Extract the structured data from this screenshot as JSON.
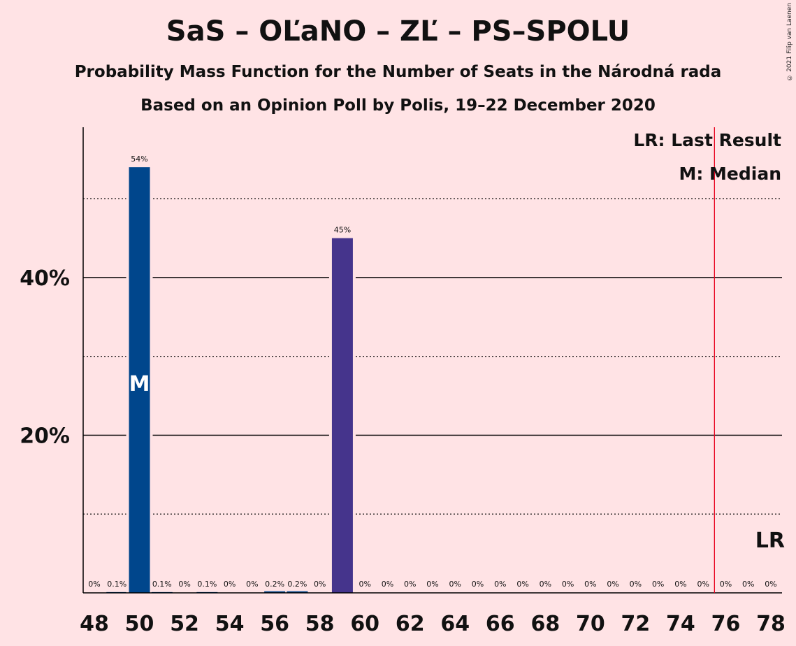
{
  "header": {
    "title": "SaS – OĽaNO – ZĽ – PS–SPOLU",
    "subtitle": "Probability Mass Function for the Number of Seats in the Národná rada",
    "source": "Based on an Opinion Poll by Polis, 19–22 December 2020",
    "copyright": "© 2021 Filip van Laenen"
  },
  "colors": {
    "background": "#FFE3E5",
    "bar_primary": "#00468C",
    "bar_secondary": "#45348C",
    "last_result_line": "#E8001C",
    "grid": "#000000"
  },
  "chart_data": {
    "type": "bar",
    "x": [
      48,
      49,
      50,
      51,
      52,
      53,
      54,
      55,
      56,
      57,
      58,
      59,
      60,
      61,
      62,
      63,
      64,
      65,
      66,
      67,
      68,
      69,
      70,
      71,
      72,
      73,
      74,
      75,
      76,
      77,
      78
    ],
    "values": [
      0,
      0.1,
      54,
      0.1,
      0,
      0.1,
      0,
      0,
      0.2,
      0.2,
      0,
      45,
      0,
      0,
      0,
      0,
      0,
      0,
      0,
      0,
      0,
      0,
      0,
      0,
      0,
      0,
      0,
      0,
      0,
      0,
      0
    ],
    "value_labels": [
      "0%",
      "0.1%",
      "54%",
      "0.1%",
      "0%",
      "0.1%",
      "0%",
      "0%",
      "0.2%",
      "0.2%",
      "0%",
      "45%",
      "0%",
      "0%",
      "0%",
      "0%",
      "0%",
      "0%",
      "0%",
      "0%",
      "0%",
      "0%",
      "0%",
      "0%",
      "0%",
      "0%",
      "0%",
      "0%",
      "0%",
      "0%",
      "0%"
    ],
    "x_tick_labels": [
      "48",
      "50",
      "52",
      "54",
      "56",
      "58",
      "60",
      "62",
      "64",
      "66",
      "68",
      "70",
      "72",
      "74",
      "76",
      "78"
    ],
    "y_tick_labels": [
      {
        "value": 20,
        "label": "20%"
      },
      {
        "value": 40,
        "label": "40%"
      }
    ],
    "y_gridlines_dotted": [
      10,
      30,
      50
    ],
    "y_gridlines_solid": [
      20,
      40
    ],
    "ylim": [
      0,
      59
    ],
    "xlim": [
      47.5,
      78.5
    ],
    "median": {
      "seat": 50,
      "marker": "M"
    },
    "last_result": {
      "seat": 75.5,
      "marker": "LR"
    },
    "legend": {
      "position": "top-right",
      "lr_text": "LR: Last Result",
      "m_text": "M: Median"
    }
  }
}
